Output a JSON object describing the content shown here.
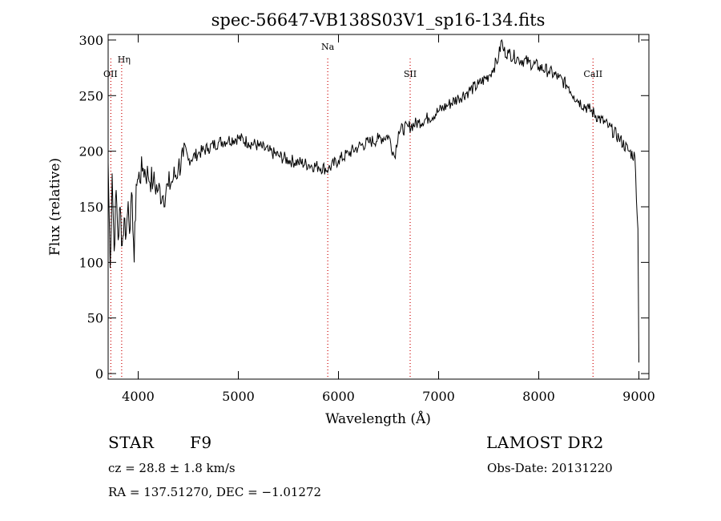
{
  "chart_data": {
    "type": "line",
    "title": "spec-56647-VB138S03V1_sp16-134.fits",
    "xlabel": "Wavelength (Å)",
    "ylabel": "Flux (relative)",
    "xlim": [
      3700,
      9100
    ],
    "ylim": [
      -5,
      305
    ],
    "x_ticks": [
      4000,
      5000,
      6000,
      7000,
      8000,
      9000
    ],
    "y_ticks": [
      0,
      50,
      100,
      150,
      200,
      250,
      300
    ],
    "grid": false,
    "line_color": "#000000",
    "marker_color": "#cc0000",
    "series": [
      {
        "x": [
          3700,
          3720,
          3740,
          3760,
          3780,
          3800,
          3820,
          3840,
          3860,
          3880,
          3900,
          3920,
          3940,
          3960,
          3980,
          4000,
          4050,
          4100,
          4150,
          4200,
          4250,
          4300,
          4350,
          4400,
          4450,
          4500,
          4600,
          4700,
          4800,
          4900,
          5000,
          5100,
          5200,
          5300,
          5400,
          5500,
          5600,
          5700,
          5800,
          5900,
          6000,
          6100,
          6200,
          6300,
          6400,
          6500,
          6560,
          6600,
          6700,
          6800,
          6900,
          7000,
          7100,
          7200,
          7300,
          7400,
          7500,
          7550,
          7600,
          7630,
          7650,
          7700,
          7800,
          7900,
          8000,
          8100,
          8200,
          8300,
          8350,
          8400,
          8500,
          8600,
          8700,
          8800,
          8900,
          8960,
          8990,
          9000
        ],
        "y": [
          190,
          95,
          180,
          110,
          165,
          120,
          150,
          115,
          140,
          125,
          155,
          130,
          160,
          100,
          170,
          175,
          185,
          178,
          172,
          165,
          160,
          168,
          175,
          185,
          195,
          192,
          198,
          203,
          208,
          210,
          212,
          208,
          205,
          200,
          196,
          192,
          190,
          188,
          186,
          184,
          192,
          198,
          204,
          208,
          211,
          214,
          195,
          218,
          222,
          226,
          230,
          236,
          242,
          248,
          254,
          260,
          268,
          275,
          285,
          300,
          290,
          288,
          283,
          280,
          276,
          272,
          266,
          258,
          250,
          245,
          238,
          230,
          222,
          212,
          200,
          195,
          130,
          10
        ]
      }
    ],
    "line_markers": [
      {
        "label": "Hη",
        "x": 3835
      },
      {
        "label": "OII",
        "x": 3727
      },
      {
        "label": "Na",
        "x": 5893
      },
      {
        "label": "SII",
        "x": 6716
      },
      {
        "label": "CaII",
        "x": 8542
      }
    ]
  },
  "info": {
    "object_class": "STAR",
    "subclass": "F9",
    "survey": "LAMOST DR2",
    "cz": "cz = 28.8 ± 1.8 km/s",
    "obs_date": "Obs-Date: 20131220",
    "coords": "RA = 137.51270, DEC =  −1.01272"
  }
}
